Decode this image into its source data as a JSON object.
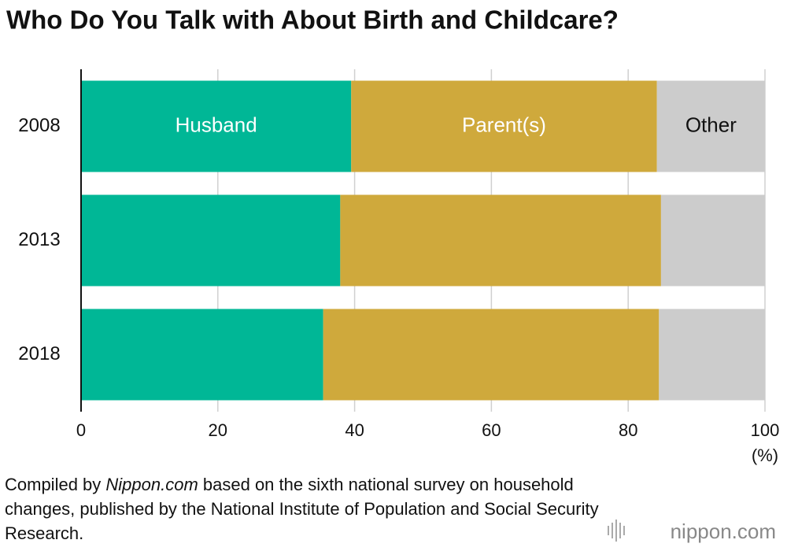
{
  "chart_data": {
    "type": "stacked-bar-horizontal",
    "title": "Who Do You Talk with About Birth and Childcare?",
    "categories": [
      "2008",
      "2013",
      "2018"
    ],
    "series": [
      {
        "name": "Husband",
        "color": "#00b796",
        "values": [
          39.5,
          37.9,
          35.4
        ]
      },
      {
        "name": "Parent(s)",
        "color": "#cfa93c",
        "values": [
          44.7,
          46.9,
          49.1
        ]
      },
      {
        "name": "Other",
        "color": "#cccccc",
        "values": [
          15.8,
          15.2,
          15.5
        ]
      }
    ],
    "xlim": [
      0,
      100
    ],
    "xticks": [
      0,
      20,
      40,
      60,
      80,
      100
    ],
    "xlabel": "(%)",
    "grid": true,
    "source": [
      "Compiled by ",
      "Nippon.com",
      " based on the sixth national survey on household changes, published by the National Institute of Population and Social Security Research."
    ],
    "logo": "nippon.com"
  }
}
